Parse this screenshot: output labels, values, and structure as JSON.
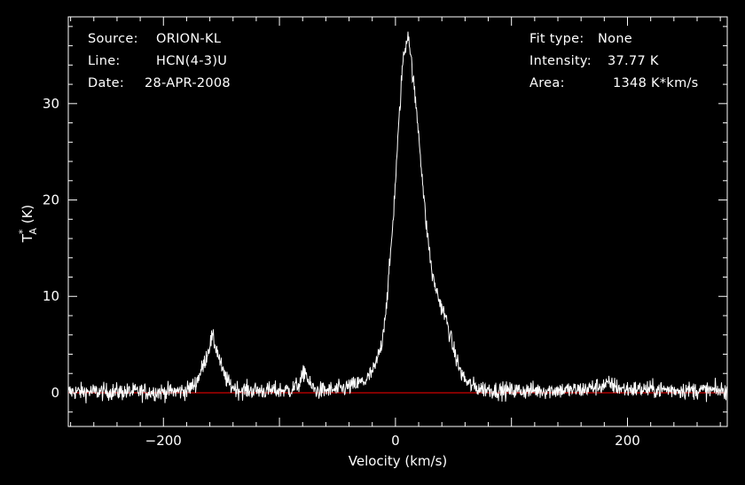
{
  "header_left": {
    "source_label": "Source:",
    "source_value": "ORION-KL",
    "line_label": "Line:",
    "line_value": "HCN(4-3)U",
    "date_label": "Date:",
    "date_value": "28-APR-2008"
  },
  "header_right": {
    "fit_label": "Fit type:",
    "fit_value": "None",
    "intensity_label": "Intensity:",
    "intensity_value": "37.77 K",
    "area_label": "Area:",
    "area_value": "1348 K*km/s"
  },
  "colors": {
    "background": "#000000",
    "foreground": "#ffffff",
    "baseline": "#ff0000"
  },
  "chart_data": {
    "type": "line",
    "xlabel": "Velocity (km/s)",
    "ylabel": "T*A (K)",
    "xlim": [
      -282,
      286
    ],
    "ylim": [
      -3.5,
      39
    ],
    "xticks": [
      -200,
      0,
      200
    ],
    "xtick_labels": [
      "−200",
      "0",
      "200"
    ],
    "yticks": [
      0,
      10,
      20,
      30
    ],
    "ytick_labels": [
      "0",
      "10",
      "20",
      "30"
    ],
    "grid": false,
    "baseline": 0,
    "noise_rms": 0.45,
    "series": [
      {
        "values_profile": [
          [
            -282,
            0.1
          ],
          [
            -200,
            0.1
          ],
          [
            -180,
            0.2
          ],
          [
            -172,
            1.0
          ],
          [
            -165,
            3.0
          ],
          [
            -158,
            5.8
          ],
          [
            -154,
            4.5
          ],
          [
            -149,
            2.2
          ],
          [
            -143,
            0.8
          ],
          [
            -135,
            0.3
          ],
          [
            -110,
            0.2
          ],
          [
            -90,
            0.3
          ],
          [
            -82,
            1.0
          ],
          [
            -78,
            2.4
          ],
          [
            -74,
            0.8
          ],
          [
            -68,
            0.2
          ],
          [
            -50,
            0.3
          ],
          [
            -35,
            0.8
          ],
          [
            -25,
            1.3
          ],
          [
            -18,
            2.5
          ],
          [
            -12,
            5.0
          ],
          [
            -7,
            10.0
          ],
          [
            -2,
            18.0
          ],
          [
            3,
            28.0
          ],
          [
            6,
            34.0
          ],
          [
            11,
            37.5
          ],
          [
            14,
            34.0
          ],
          [
            20,
            27.0
          ],
          [
            26,
            18.0
          ],
          [
            32,
            12.0
          ],
          [
            38,
            9.5
          ],
          [
            44,
            7.5
          ],
          [
            50,
            4.5
          ],
          [
            56,
            2.2
          ],
          [
            62,
            1.0
          ],
          [
            70,
            0.5
          ],
          [
            90,
            0.2
          ],
          [
            160,
            0.3
          ],
          [
            185,
            0.9
          ],
          [
            195,
            0.4
          ],
          [
            286,
            0.2
          ]
        ]
      }
    ]
  }
}
